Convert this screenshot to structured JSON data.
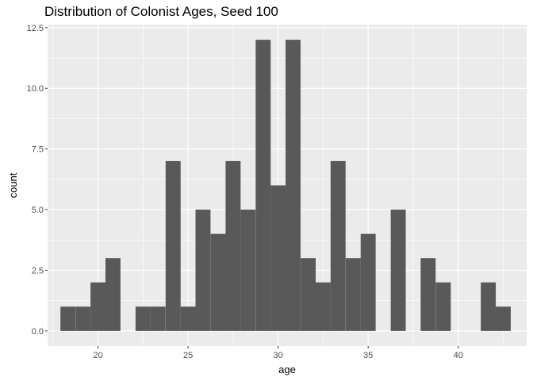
{
  "chart_data": {
    "type": "bar",
    "title": "Distribution of Colonist Ages, Seed 100",
    "xlabel": "age",
    "ylabel": "count",
    "xlim": [
      17.2,
      43.8
    ],
    "ylim": [
      -0.625,
      12.625
    ],
    "x_ticks": [
      20,
      25,
      30,
      35,
      40
    ],
    "x_tick_labels": [
      "20",
      "25",
      "30",
      "35",
      "40"
    ],
    "y_ticks": [
      0,
      2.5,
      5,
      7.5,
      10,
      12.5
    ],
    "y_tick_labels": [
      "0.0",
      "2.5",
      "5.0",
      "7.5",
      "10.0",
      "12.5"
    ],
    "bin_width": 0.833,
    "bins": [
      {
        "center": 18.33,
        "count": 1
      },
      {
        "center": 19.17,
        "count": 1
      },
      {
        "center": 20.0,
        "count": 2
      },
      {
        "center": 20.83,
        "count": 3
      },
      {
        "center": 21.67,
        "count": 0
      },
      {
        "center": 22.5,
        "count": 1
      },
      {
        "center": 23.33,
        "count": 1
      },
      {
        "center": 24.17,
        "count": 7
      },
      {
        "center": 25.0,
        "count": 1
      },
      {
        "center": 25.83,
        "count": 5
      },
      {
        "center": 26.67,
        "count": 4
      },
      {
        "center": 27.5,
        "count": 7
      },
      {
        "center": 28.33,
        "count": 5
      },
      {
        "center": 29.17,
        "count": 12
      },
      {
        "center": 30.0,
        "count": 6
      },
      {
        "center": 30.83,
        "count": 12
      },
      {
        "center": 31.67,
        "count": 3
      },
      {
        "center": 32.5,
        "count": 2
      },
      {
        "center": 33.33,
        "count": 7
      },
      {
        "center": 34.17,
        "count": 3
      },
      {
        "center": 35.0,
        "count": 4
      },
      {
        "center": 35.83,
        "count": 0
      },
      {
        "center": 36.67,
        "count": 5
      },
      {
        "center": 37.5,
        "count": 0
      },
      {
        "center": 38.33,
        "count": 3
      },
      {
        "center": 39.17,
        "count": 2
      },
      {
        "center": 40.0,
        "count": 0
      },
      {
        "center": 40.83,
        "count": 0
      },
      {
        "center": 41.67,
        "count": 2
      },
      {
        "center": 42.5,
        "count": 1
      }
    ],
    "grid": true,
    "colors": {
      "bar": "#595959",
      "panel": "#ebebeb",
      "grid": "#ffffff",
      "axis_text": "#4d4d4d"
    }
  }
}
